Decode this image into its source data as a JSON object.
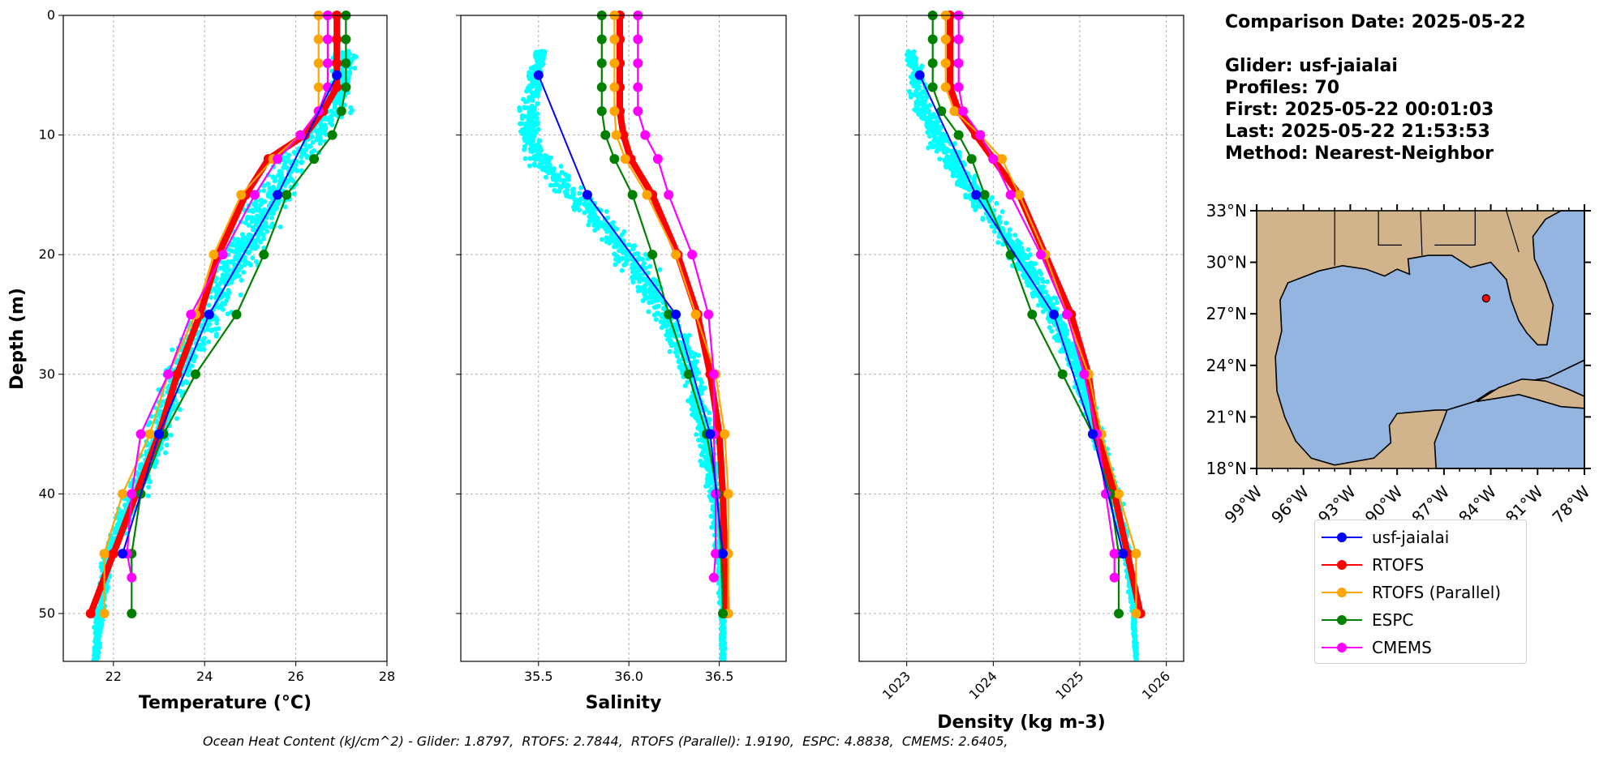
{
  "info": {
    "comparison_date": "Comparison Date: 2025-05-22",
    "glider": "Glider: usf-jaialai",
    "profiles": "Profiles: 70",
    "first": "First: 2025-05-22 00:01:03",
    "last": "Last: 2025-05-22 21:53:53",
    "method": "Method: Nearest-Neighbor"
  },
  "footer": "Ocean Heat Content (kJ/cm^2) - Glider: 1.8797,  RTOFS: 2.7844,  RTOFS (Parallel): 1.9190,  ESPC: 4.8838,  CMEMS: 2.6405,",
  "colors": {
    "glider": "#0000ff",
    "rtofs": "#ff0000",
    "rtofs_parallel": "#ffa500",
    "espc": "#008000",
    "cmems": "#ff00ff",
    "glider_scatter": "#00ffff",
    "land": "#d2b48c",
    "water": "#95b5e1"
  },
  "legend": [
    "usf-jaialai",
    "RTOFS",
    "RTOFS (Parallel)",
    "ESPC",
    "CMEMS"
  ],
  "chart_data": [
    {
      "type": "line",
      "xlabel": "Temperature (°C)",
      "ylabel": "Depth (m)",
      "xlim": [
        20.9,
        28.0
      ],
      "ylim": [
        54,
        0
      ],
      "xticks": [
        "22",
        "24",
        "26",
        "28"
      ],
      "yticks": [
        "0",
        "10",
        "20",
        "30",
        "40",
        "50"
      ],
      "grid": true,
      "series": [
        {
          "name": "usf-jaialai",
          "depth": [
            5,
            15,
            25,
            35,
            45
          ],
          "values": [
            26.9,
            25.6,
            24.1,
            23.0,
            22.2
          ]
        },
        {
          "name": "RTOFS",
          "depth": [
            0,
            2,
            4,
            6,
            8,
            10,
            12,
            15,
            20,
            25,
            30,
            35,
            40,
            45,
            50
          ],
          "values": [
            26.9,
            26.9,
            26.9,
            26.9,
            26.6,
            26.2,
            25.4,
            24.9,
            24.3,
            23.9,
            23.4,
            23.0,
            22.5,
            22.0,
            21.5
          ]
        },
        {
          "name": "RTOFS (Parallel)",
          "depth": [
            0,
            2,
            4,
            6,
            8,
            10,
            12,
            15,
            20,
            25,
            30,
            35,
            40,
            45,
            50
          ],
          "values": [
            26.5,
            26.5,
            26.5,
            26.5,
            26.5,
            26.1,
            25.5,
            24.8,
            24.2,
            23.8,
            23.2,
            22.8,
            22.2,
            21.8,
            21.8
          ]
        },
        {
          "name": "ESPC",
          "depth": [
            0,
            2,
            4,
            6,
            8,
            10,
            12,
            15,
            20,
            25,
            30,
            35,
            40,
            45,
            50
          ],
          "values": [
            27.1,
            27.1,
            27.1,
            27.1,
            27.0,
            26.8,
            26.4,
            25.8,
            25.3,
            24.7,
            23.8,
            23.1,
            22.6,
            22.4,
            22.4
          ]
        },
        {
          "name": "CMEMS",
          "depth": [
            0,
            2,
            4,
            6,
            8,
            10,
            12,
            15,
            20,
            25,
            30,
            35,
            40,
            45,
            47
          ],
          "values": [
            26.7,
            26.7,
            26.7,
            26.7,
            26.5,
            26.1,
            25.6,
            25.1,
            24.4,
            23.7,
            23.2,
            22.6,
            22.4,
            22.3,
            22.4
          ]
        }
      ]
    },
    {
      "type": "line",
      "xlabel": "Salinity",
      "xlim": [
        35.07,
        36.87
      ],
      "ylim": [
        54,
        0
      ],
      "xticks": [
        "35.5",
        "36.0",
        "36.5"
      ],
      "grid": true,
      "series": [
        {
          "name": "usf-jaialai",
          "depth": [
            5,
            15,
            25,
            35,
            45
          ],
          "values": [
            35.5,
            35.77,
            36.26,
            36.45,
            36.52
          ]
        },
        {
          "name": "RTOFS",
          "depth": [
            0,
            2,
            4,
            6,
            8,
            10,
            12,
            15,
            20,
            25,
            30,
            35,
            40,
            45,
            50
          ],
          "values": [
            35.95,
            35.95,
            35.95,
            35.95,
            35.95,
            35.97,
            36.01,
            36.13,
            36.27,
            36.38,
            36.45,
            36.5,
            36.52,
            36.53,
            36.54
          ]
        },
        {
          "name": "RTOFS (Parallel)",
          "depth": [
            0,
            2,
            4,
            6,
            8,
            10,
            12,
            15,
            20,
            25,
            30,
            35,
            40,
            45,
            50
          ],
          "values": [
            35.92,
            35.92,
            35.92,
            35.92,
            35.92,
            35.93,
            35.98,
            36.1,
            36.26,
            36.37,
            36.48,
            36.53,
            36.55,
            36.55,
            36.55
          ]
        },
        {
          "name": "ESPC",
          "depth": [
            0,
            2,
            4,
            6,
            8,
            10,
            12,
            15,
            20,
            25,
            30,
            35,
            40,
            45,
            50
          ],
          "values": [
            35.85,
            35.85,
            35.85,
            35.85,
            35.85,
            35.87,
            35.92,
            36.02,
            36.13,
            36.22,
            36.33,
            36.43,
            36.49,
            36.51,
            36.52
          ]
        },
        {
          "name": "CMEMS",
          "depth": [
            0,
            2,
            4,
            6,
            8,
            10,
            12,
            15,
            20,
            25,
            30,
            35,
            40,
            45,
            47
          ],
          "values": [
            36.05,
            36.05,
            36.05,
            36.05,
            36.05,
            36.09,
            36.16,
            36.22,
            36.35,
            36.44,
            36.47,
            36.47,
            36.48,
            36.48,
            36.47
          ]
        }
      ]
    },
    {
      "type": "line",
      "xlabel": "Density (kg m-3)",
      "xlim": [
        1022.45,
        1026.2
      ],
      "ylim": [
        54,
        0
      ],
      "xticks": [
        "1023",
        "1024",
        "1025",
        "1026"
      ],
      "grid": true,
      "series": [
        {
          "name": "usf-jaialai",
          "depth": [
            5,
            15,
            25,
            35,
            45
          ],
          "values": [
            1023.15,
            1023.8,
            1024.7,
            1025.15,
            1025.5
          ]
        },
        {
          "name": "RTOFS",
          "depth": [
            0,
            2,
            4,
            6,
            8,
            10,
            12,
            15,
            20,
            25,
            30,
            35,
            40,
            45,
            50
          ],
          "values": [
            1023.5,
            1023.5,
            1023.5,
            1023.5,
            1023.6,
            1023.8,
            1024.0,
            1024.3,
            1024.6,
            1024.9,
            1025.1,
            1025.2,
            1025.4,
            1025.55,
            1025.7
          ]
        },
        {
          "name": "RTOFS (Parallel)",
          "depth": [
            0,
            2,
            4,
            6,
            8,
            10,
            12,
            15,
            20,
            25,
            30,
            35,
            40,
            45,
            50
          ],
          "values": [
            1023.45,
            1023.45,
            1023.45,
            1023.45,
            1023.55,
            1023.85,
            1024.1,
            1024.3,
            1024.6,
            1024.85,
            1025.1,
            1025.25,
            1025.45,
            1025.65,
            1025.65
          ]
        },
        {
          "name": "ESPC",
          "depth": [
            0,
            2,
            4,
            6,
            8,
            10,
            12,
            15,
            20,
            25,
            30,
            35,
            40,
            45,
            50
          ],
          "values": [
            1023.3,
            1023.3,
            1023.3,
            1023.3,
            1023.4,
            1023.6,
            1023.75,
            1023.9,
            1024.2,
            1024.45,
            1024.8,
            1025.15,
            1025.35,
            1025.45,
            1025.45
          ]
        },
        {
          "name": "CMEMS",
          "depth": [
            0,
            2,
            4,
            6,
            8,
            10,
            12,
            15,
            20,
            25,
            30,
            35,
            40,
            45,
            47
          ],
          "values": [
            1023.6,
            1023.6,
            1023.6,
            1023.6,
            1023.65,
            1023.85,
            1024.0,
            1024.2,
            1024.55,
            1024.85,
            1025.05,
            1025.2,
            1025.3,
            1025.4,
            1025.4
          ]
        }
      ]
    }
  ],
  "map": {
    "lat_labels": [
      "33°N",
      "30°N",
      "27°N",
      "24°N",
      "21°N",
      "18°N"
    ],
    "lon_labels": [
      "99°W",
      "96°W",
      "93°W",
      "90°W",
      "87°W",
      "84°W",
      "81°W",
      "78°W"
    ],
    "lat_range": [
      18,
      33
    ],
    "lon_range": [
      -99,
      -78
    ],
    "glider_position": {
      "lon": -84.3,
      "lat": 27.9
    }
  }
}
